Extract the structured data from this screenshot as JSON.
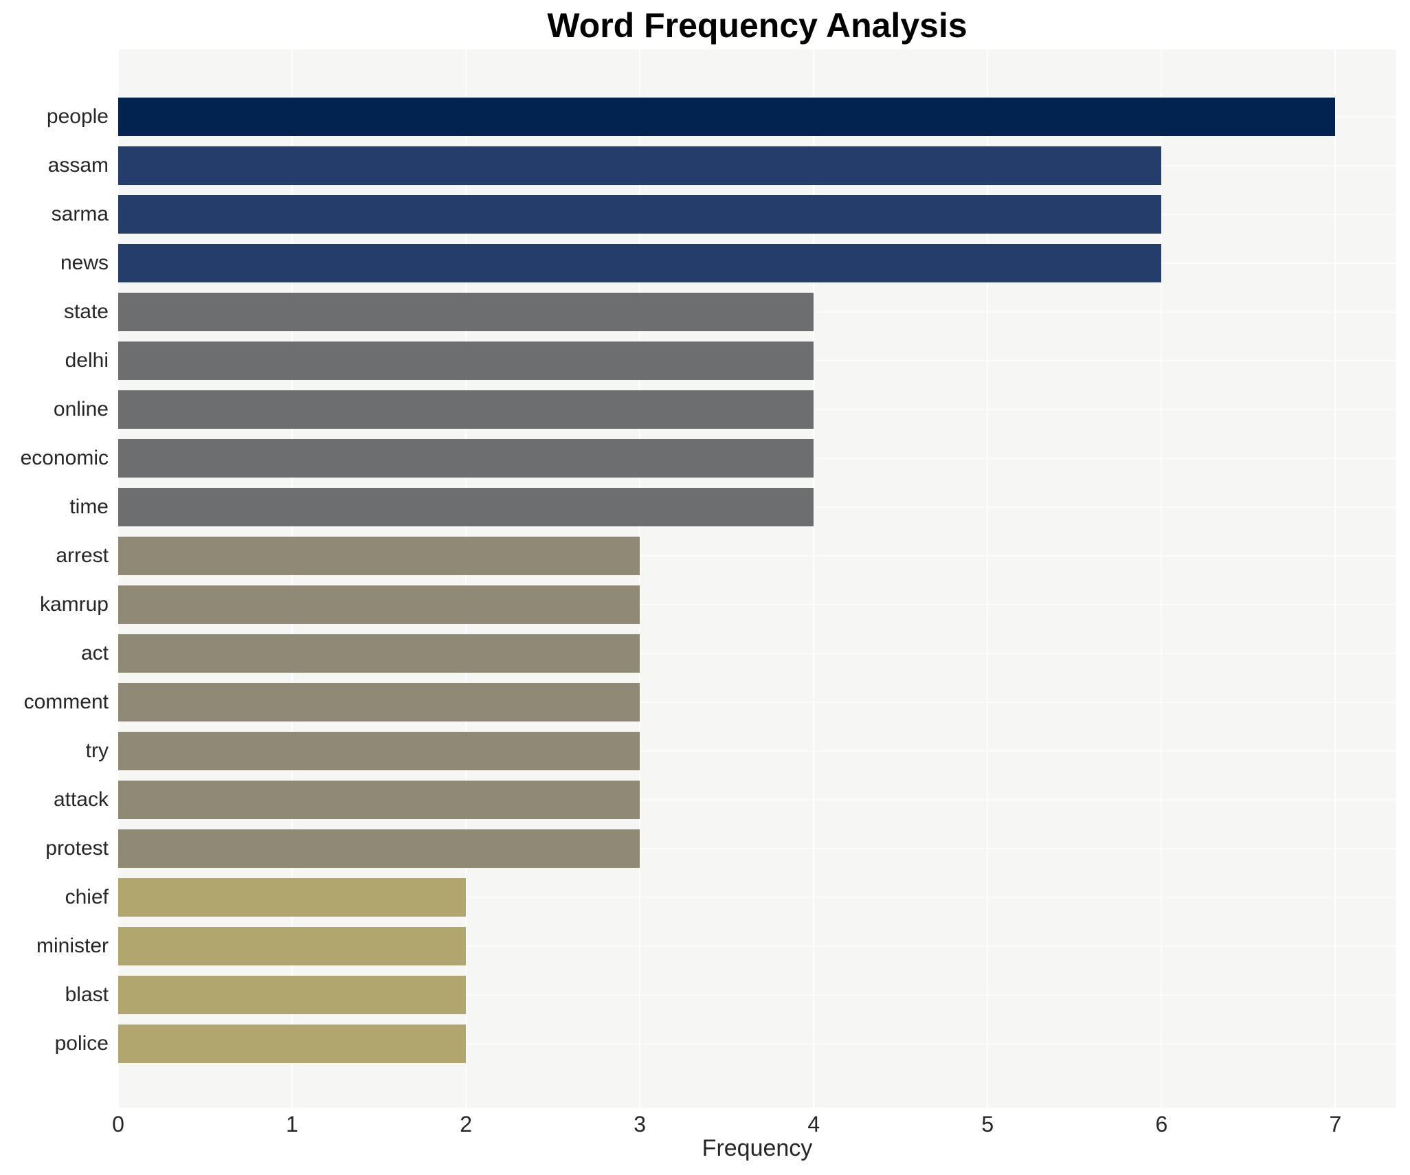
{
  "title": "Word Frequency Analysis",
  "xlabel": "Frequency",
  "chart_data": {
    "type": "bar",
    "orientation": "horizontal",
    "categories": [
      "people",
      "assam",
      "sarma",
      "news",
      "state",
      "delhi",
      "online",
      "economic",
      "time",
      "arrest",
      "kamrup",
      "act",
      "comment",
      "try",
      "attack",
      "protest",
      "chief",
      "minister",
      "blast",
      "police"
    ],
    "values": [
      7,
      6,
      6,
      6,
      4,
      4,
      4,
      4,
      4,
      3,
      3,
      3,
      3,
      3,
      3,
      3,
      2,
      2,
      2,
      2
    ],
    "title": "Word Frequency Analysis",
    "xlabel": "Frequency",
    "ylabel": "",
    "xlim": [
      0,
      7.35
    ],
    "xticks": [
      0,
      1,
      2,
      3,
      4,
      5,
      6,
      7
    ],
    "grid": true,
    "legend": "none",
    "colors_by_value": {
      "7": "#022350",
      "6": "#243d6b",
      "4": "#6c6e70",
      "3": "#8f8976",
      "2": "#b1a76e"
    },
    "plot_background": "#f6f6f4",
    "gridline_color": "#ffffff",
    "text_color": "#262626"
  }
}
